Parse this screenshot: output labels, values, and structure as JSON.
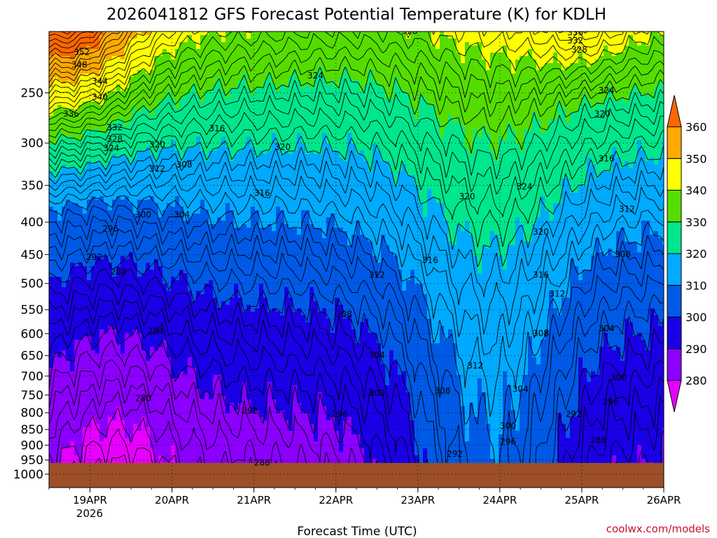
{
  "chart_data": {
    "type": "heatmap",
    "title": "2026041812 GFS Forecast Potential Temperature (K) for KDLH",
    "xlabel": "Forecast Time (UTC)",
    "ylabel": "",
    "credit": "coolwx.com/models",
    "x_ticks": [
      "19APR",
      "20APR",
      "21APR",
      "22APR",
      "23APR",
      "24APR",
      "25APR",
      "26APR"
    ],
    "x_year": "2026",
    "x_range_days": [
      18.5,
      26.0
    ],
    "y_ticks": [
      "250",
      "300",
      "350",
      "400",
      "450",
      "500",
      "550",
      "600",
      "650",
      "700",
      "750",
      "800",
      "850",
      "900",
      "950",
      "1000"
    ],
    "y_range_hPa": [
      200,
      1050
    ],
    "y_scale": "log",
    "grid": true,
    "colorbar": {
      "levels": [
        "280",
        "290",
        "300",
        "310",
        "320",
        "330",
        "340",
        "350",
        "360"
      ],
      "colors": [
        "#e600ff",
        "#8b00ff",
        "#1a00e6",
        "#005ae6",
        "#00aaff",
        "#00e68c",
        "#55dd00",
        "#ffff00",
        "#ffaa00",
        "#ff6600"
      ],
      "extend": "both"
    },
    "ground_color": "#9c4f28",
    "surface_pressure_hPa": 960,
    "contour_interval_K": 2,
    "contour_labels": [
      {
        "day": 18.9,
        "p": 216,
        "text": "352"
      },
      {
        "day": 18.87,
        "p": 226,
        "text": "348"
      },
      {
        "day": 19.12,
        "p": 240,
        "text": "344"
      },
      {
        "day": 19.12,
        "p": 254,
        "text": "340"
      },
      {
        "day": 18.77,
        "p": 270,
        "text": "336"
      },
      {
        "day": 19.3,
        "p": 284,
        "text": "332"
      },
      {
        "day": 19.3,
        "p": 296,
        "text": "328"
      },
      {
        "day": 19.26,
        "p": 306,
        "text": "324"
      },
      {
        "day": 19.82,
        "p": 302,
        "text": "320"
      },
      {
        "day": 19.82,
        "p": 330,
        "text": "312"
      },
      {
        "day": 20.15,
        "p": 325,
        "text": "308"
      },
      {
        "day": 20.55,
        "p": 285,
        "text": "316"
      },
      {
        "day": 19.65,
        "p": 390,
        "text": "300"
      },
      {
        "day": 20.12,
        "p": 390,
        "text": "304"
      },
      {
        "day": 19.25,
        "p": 410,
        "text": "296"
      },
      {
        "day": 19.05,
        "p": 455,
        "text": "292"
      },
      {
        "day": 19.35,
        "p": 480,
        "text": "288"
      },
      {
        "day": 19.8,
        "p": 595,
        "text": "284"
      },
      {
        "day": 19.65,
        "p": 760,
        "text": "280"
      },
      {
        "day": 21.75,
        "p": 235,
        "text": "324"
      },
      {
        "day": 22.9,
        "p": 200,
        "text": "328"
      },
      {
        "day": 23.7,
        "p": 198,
        "text": "328"
      },
      {
        "day": 21.35,
        "p": 305,
        "text": "320"
      },
      {
        "day": 21.1,
        "p": 360,
        "text": "316"
      },
      {
        "day": 23.6,
        "p": 365,
        "text": "320"
      },
      {
        "day": 24.3,
        "p": 352,
        "text": "324"
      },
      {
        "day": 24.5,
        "p": 415,
        "text": "320"
      },
      {
        "day": 24.5,
        "p": 485,
        "text": "316"
      },
      {
        "day": 24.7,
        "p": 520,
        "text": "312"
      },
      {
        "day": 23.15,
        "p": 460,
        "text": "316"
      },
      {
        "day": 22.5,
        "p": 485,
        "text": "312"
      },
      {
        "day": 22.1,
        "p": 560,
        "text": "308"
      },
      {
        "day": 22.5,
        "p": 650,
        "text": "304"
      },
      {
        "day": 22.5,
        "p": 745,
        "text": "300"
      },
      {
        "day": 22.05,
        "p": 805,
        "text": "296"
      },
      {
        "day": 20.95,
        "p": 795,
        "text": "292"
      },
      {
        "day": 21.1,
        "p": 960,
        "text": "288"
      },
      {
        "day": 23.3,
        "p": 740,
        "text": "308"
      },
      {
        "day": 23.7,
        "p": 675,
        "text": "312"
      },
      {
        "day": 24.5,
        "p": 600,
        "text": "308"
      },
      {
        "day": 25.3,
        "p": 590,
        "text": "304"
      },
      {
        "day": 25.45,
        "p": 705,
        "text": "300"
      },
      {
        "day": 25.35,
        "p": 770,
        "text": "296"
      },
      {
        "day": 24.25,
        "p": 735,
        "text": "304"
      },
      {
        "day": 24.1,
        "p": 840,
        "text": "300"
      },
      {
        "day": 24.9,
        "p": 805,
        "text": "292"
      },
      {
        "day": 24.1,
        "p": 890,
        "text": "296"
      },
      {
        "day": 23.45,
        "p": 930,
        "text": "292"
      },
      {
        "day": 25.2,
        "p": 885,
        "text": "288"
      },
      {
        "day": 25.25,
        "p": 270,
        "text": "320"
      },
      {
        "day": 25.3,
        "p": 248,
        "text": "324"
      },
      {
        "day": 25.3,
        "p": 318,
        "text": "316"
      },
      {
        "day": 25.55,
        "p": 382,
        "text": "312"
      },
      {
        "day": 25.5,
        "p": 450,
        "text": "308"
      },
      {
        "day": 24.97,
        "p": 214,
        "text": "328"
      },
      {
        "day": 24.92,
        "p": 207,
        "text": "332"
      },
      {
        "day": 24.92,
        "p": 201,
        "text": "336"
      },
      {
        "day": 24.92,
        "p": 197,
        "text": "340"
      }
    ]
  }
}
